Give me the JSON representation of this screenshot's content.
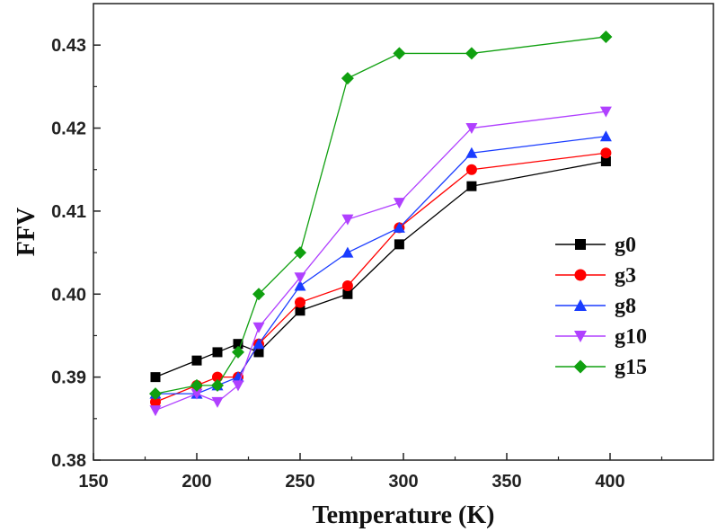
{
  "chart_data": {
    "type": "line",
    "title": "",
    "xlabel": "Temperature (K)",
    "ylabel": "FFV",
    "xlim": [
      150,
      450
    ],
    "ylim": [
      0.38,
      0.435
    ],
    "xticks": [
      "150",
      "200",
      "250",
      "300",
      "350",
      "400"
    ],
    "xtick_values": [
      150,
      200,
      250,
      300,
      350,
      400
    ],
    "yticks": [
      "0.38",
      "0.39",
      "0.40",
      "0.41",
      "0.42",
      "0.43"
    ],
    "ytick_values": [
      0.38,
      0.39,
      0.4,
      0.41,
      0.42,
      0.43
    ],
    "grid": false,
    "legend_position": "right",
    "x": [
      180,
      200,
      210,
      220,
      230,
      250,
      273,
      298,
      333,
      398
    ],
    "series": [
      {
        "name": "g0",
        "color": "#000000",
        "marker": "square",
        "values": [
          0.39,
          0.392,
          0.393,
          0.394,
          0.393,
          0.398,
          0.4,
          0.406,
          0.413,
          0.416
        ]
      },
      {
        "name": "g3",
        "color": "#ff0000",
        "marker": "circle",
        "values": [
          0.387,
          0.389,
          0.39,
          0.39,
          0.394,
          0.399,
          0.401,
          0.408,
          0.415,
          0.417
        ]
      },
      {
        "name": "g8",
        "color": "#1a3cff",
        "marker": "triangle-up",
        "values": [
          0.388,
          0.388,
          0.389,
          0.39,
          0.394,
          0.401,
          0.405,
          0.408,
          0.417,
          0.419
        ]
      },
      {
        "name": "g10",
        "color": "#b040ff",
        "marker": "triangle-down",
        "values": [
          0.386,
          0.388,
          0.387,
          0.389,
          0.396,
          0.402,
          0.409,
          0.411,
          0.42,
          0.422
        ]
      },
      {
        "name": "g15",
        "color": "#10a010",
        "marker": "diamond",
        "values": [
          0.388,
          0.389,
          0.389,
          0.393,
          0.4,
          0.405,
          0.426,
          0.429,
          0.429,
          0.431
        ]
      }
    ]
  }
}
